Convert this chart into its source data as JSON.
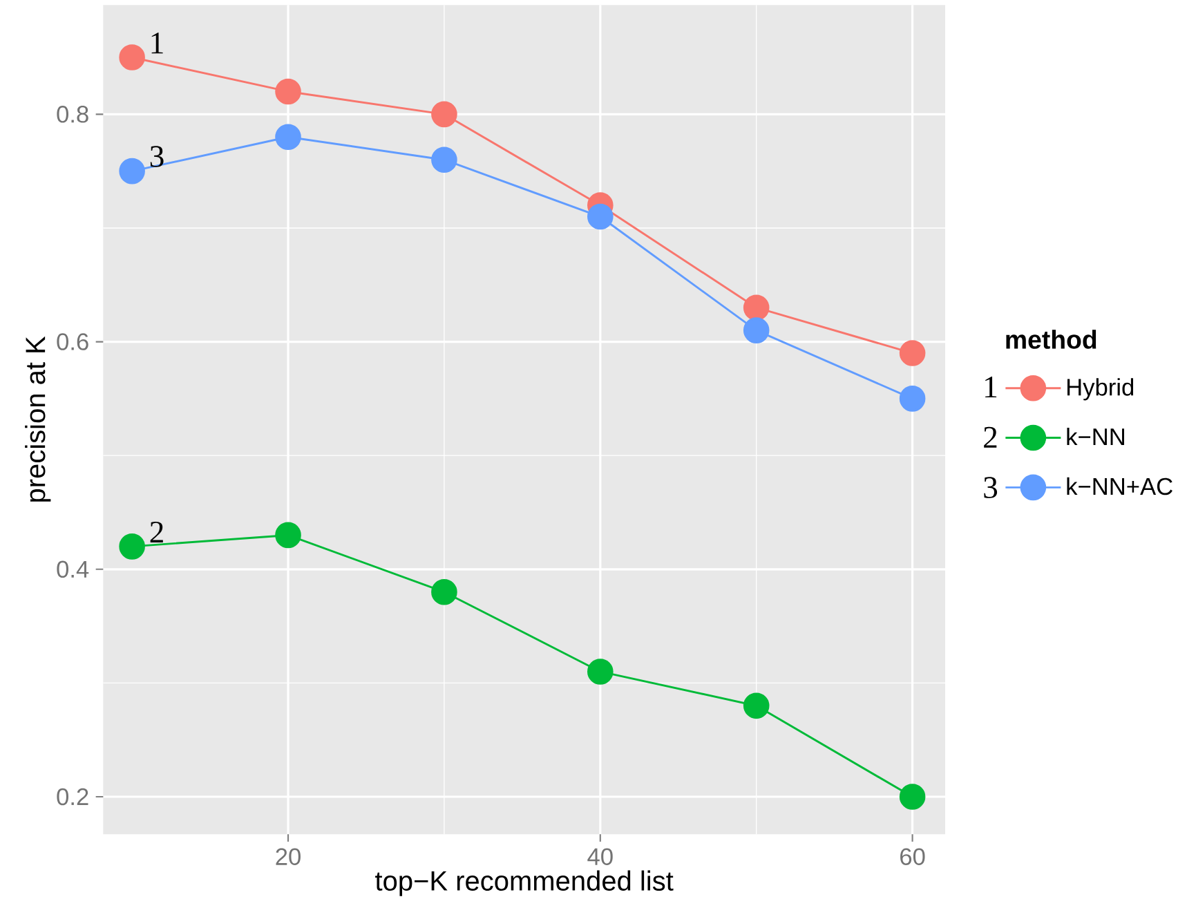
{
  "chart_data": {
    "type": "line",
    "xlabel": "top−K recommended list",
    "ylabel": "precision at K",
    "legend_title": "method",
    "x": [
      10,
      20,
      30,
      40,
      50,
      60
    ],
    "series": [
      {
        "name": "Hybrid",
        "color": "#f8766d",
        "values": [
          0.85,
          0.82,
          0.8,
          0.72,
          0.63,
          0.59
        ]
      },
      {
        "name": "k−NN",
        "color": "#00ba38",
        "values": [
          0.42,
          0.43,
          0.38,
          0.31,
          0.28,
          0.2
        ]
      },
      {
        "name": "k−NN+AC",
        "color": "#619cff",
        "values": [
          0.75,
          0.78,
          0.76,
          0.71,
          0.61,
          0.55
        ]
      }
    ],
    "xlim": [
      8.15,
      62.1
    ],
    "ylim": [
      0.167,
      0.896
    ],
    "xticks": [
      20,
      40,
      60
    ],
    "yticks": [
      0.2,
      0.4,
      0.6,
      0.8
    ],
    "grid": true,
    "legend": "right",
    "marker": "circle",
    "line_style": "solid",
    "annotations": [
      "1",
      "2",
      "3",
      "1",
      "2",
      "3"
    ]
  }
}
